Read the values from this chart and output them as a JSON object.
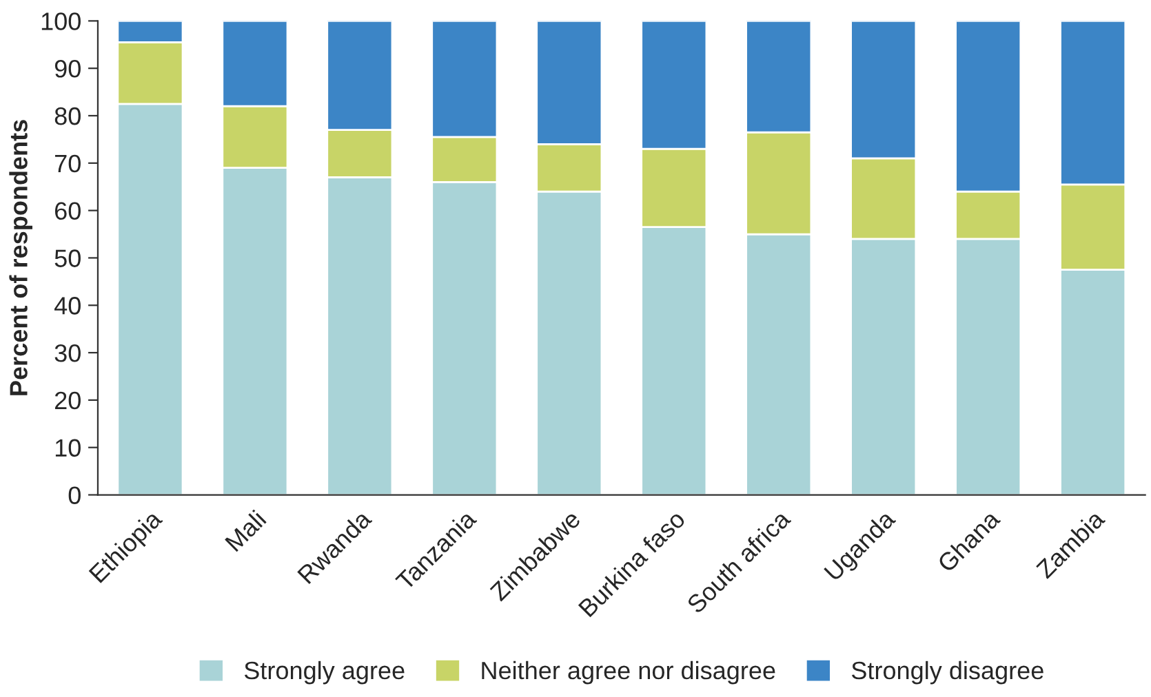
{
  "chart_data": {
    "type": "bar",
    "stacked": true,
    "ylabel": "Percent of respondents",
    "categories": [
      "Ethiopia",
      "Mali",
      "Rwanda",
      "Tanzania",
      "Zimbabwe",
      "Burkina faso",
      "South africa",
      "Uganda",
      "Ghana",
      "Zambia"
    ],
    "series": [
      {
        "name": "Strongly agree",
        "color": "#a9d3d7",
        "values": [
          82.5,
          69,
          67,
          66,
          64,
          56.5,
          55,
          54,
          54,
          47.5
        ]
      },
      {
        "name": "Neither agree nor disagree",
        "color": "#c8d467",
        "values": [
          13,
          13,
          10,
          9.5,
          10,
          16.5,
          21.5,
          17,
          10,
          18
        ]
      },
      {
        "name": "Strongly disagree",
        "color": "#3c85c6",
        "values": [
          4.5,
          18,
          23,
          24.5,
          26,
          27,
          23.5,
          29,
          36,
          34.5
        ]
      }
    ],
    "ylim": [
      0,
      100
    ],
    "yticks": [
      0,
      10,
      20,
      30,
      40,
      50,
      60,
      70,
      80,
      90,
      100
    ],
    "grid": false,
    "legend": "bottom"
  }
}
